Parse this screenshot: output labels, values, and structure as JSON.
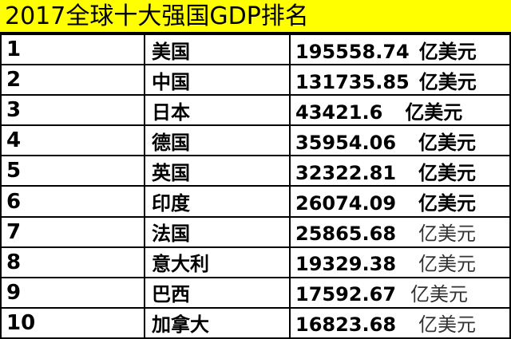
{
  "title": "2017全球十大强国GDP排名",
  "unit": "亿美元",
  "rows": [
    {
      "rank": "1",
      "country": "美国",
      "gdp": "195558.74"
    },
    {
      "rank": "2",
      "country": "中国",
      "gdp": "131735.85"
    },
    {
      "rank": "3",
      "country": "日本",
      "gdp": "43421.6"
    },
    {
      "rank": "4",
      "country": "德国",
      "gdp": "35954.06"
    },
    {
      "rank": "5",
      "country": "英国",
      "gdp": "32322.81"
    },
    {
      "rank": "6",
      "country": "印度",
      "gdp": "26074.09"
    },
    {
      "rank": "7",
      "country": "法国",
      "gdp": "25865.68"
    },
    {
      "rank": "8",
      "country": "意大利",
      "gdp": "19329.38"
    },
    {
      "rank": "9",
      "country": "巴西",
      "gdp": "17592.67"
    },
    {
      "rank": "10",
      "country": "加拿大",
      "gdp": "16823.68"
    }
  ]
}
